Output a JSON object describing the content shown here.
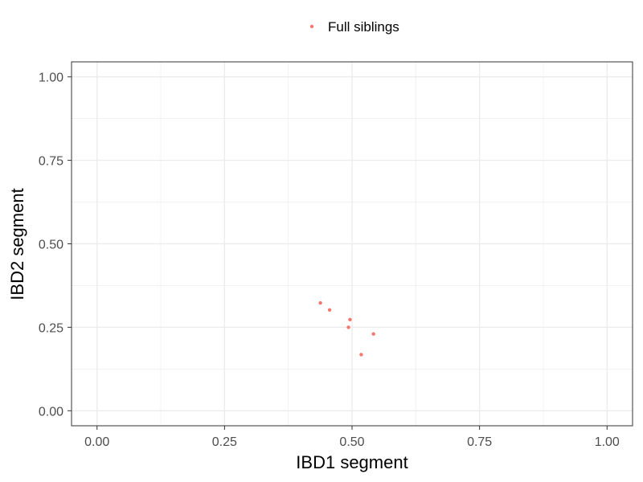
{
  "chart_data": {
    "type": "scatter",
    "xlabel": "IBD1 segment",
    "ylabel": "IBD2 segment",
    "xlim": [
      -0.05,
      1.05
    ],
    "ylim": [
      -0.045,
      1.045
    ],
    "x_ticks": [
      "0.00",
      "0.25",
      "0.50",
      "0.75",
      "1.00"
    ],
    "y_ticks": [
      "0.00",
      "0.25",
      "0.50",
      "0.75",
      "1.00"
    ],
    "grid": true,
    "legend_position": "top",
    "colors": {
      "point": "#F8766D",
      "major_grid": "#EBEBEB",
      "panel_border": "#333333",
      "tick_text": "#4D4D4D"
    },
    "series": [
      {
        "name": "Full siblings",
        "points": [
          {
            "x": 0.438,
            "y": 0.323
          },
          {
            "x": 0.456,
            "y": 0.302
          },
          {
            "x": 0.496,
            "y": 0.273
          },
          {
            "x": 0.493,
            "y": 0.25
          },
          {
            "x": 0.542,
            "y": 0.23
          },
          {
            "x": 0.518,
            "y": 0.168
          }
        ]
      }
    ]
  }
}
